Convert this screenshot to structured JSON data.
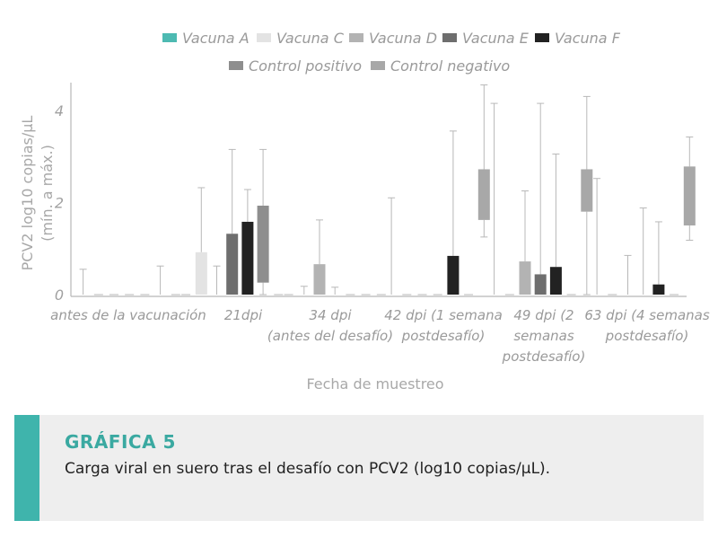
{
  "chart_data": {
    "type": "box",
    "xlabel": "Fecha de muestreo",
    "ylabel": "PCV2 log10 copias/µL",
    "ylabel2": "(mín. a máx.)",
    "ylim": [
      0,
      4.6
    ],
    "yticks": [
      0,
      2,
      4
    ],
    "grid": false,
    "legend_position": "top",
    "categories": [
      [
        "antes de la vacunación"
      ],
      [
        "21dpi"
      ],
      [
        "34 dpi",
        "(antes del desafío)"
      ],
      [
        "42 dpi (1 semana",
        "postdesafío)"
      ],
      [
        "49 dpi (2",
        "semanas",
        "postdesafío)"
      ],
      [
        "63 dpi (4 semanas",
        "postdesafío)"
      ]
    ],
    "series": [
      {
        "name": "Vacuna A",
        "color": "#4dbab2",
        "boxes": [
          {
            "min": 0,
            "q1": 0,
            "q3": 0,
            "max": 0.55
          },
          {
            "min": 0,
            "q1": 0,
            "q3": 0,
            "max": 0
          },
          {
            "min": 0,
            "q1": 0,
            "q3": 0,
            "max": 0
          },
          {
            "min": 0,
            "q1": 0,
            "q3": 0,
            "max": 2.1
          },
          {
            "min": 0,
            "q1": 0,
            "q3": 0,
            "max": 4.15
          },
          {
            "min": 0,
            "q1": 0,
            "q3": 0,
            "max": 2.52
          }
        ]
      },
      {
        "name": "Vacuna C",
        "color": "#e3e3e3",
        "boxes": [
          {
            "min": 0,
            "q1": 0,
            "q3": 0,
            "max": 0
          },
          {
            "min": 0,
            "q1": 0,
            "q3": 0.92,
            "max": 2.32
          },
          {
            "min": 0,
            "q1": 0,
            "q3": 0,
            "max": 0.18
          },
          {
            "min": 0,
            "q1": 0,
            "q3": 0,
            "max": 0
          },
          {
            "min": 0,
            "q1": 0,
            "q3": 0,
            "max": 0
          },
          {
            "min": 0,
            "q1": 0,
            "q3": 0,
            "max": 0
          }
        ]
      },
      {
        "name": "Vacuna D",
        "color": "#b3b3b3",
        "boxes": [
          {
            "min": 0,
            "q1": 0,
            "q3": 0,
            "max": 0
          },
          {
            "min": 0,
            "q1": 0,
            "q3": 0,
            "max": 0.62
          },
          {
            "min": 0,
            "q1": 0,
            "q3": 0.66,
            "max": 1.62
          },
          {
            "min": 0,
            "q1": 0,
            "q3": 0,
            "max": 0
          },
          {
            "min": 0,
            "q1": 0,
            "q3": 0.72,
            "max": 2.25
          },
          {
            "min": 0,
            "q1": 0,
            "q3": 0,
            "max": 0.85
          }
        ]
      },
      {
        "name": "Vacuna E",
        "color": "#6e6e6e",
        "boxes": [
          {
            "min": 0,
            "q1": 0,
            "q3": 0,
            "max": 0
          },
          {
            "min": 0,
            "q1": 0,
            "q3": 1.32,
            "max": 3.15
          },
          {
            "min": 0,
            "q1": 0,
            "q3": 0,
            "max": 0.16
          },
          {
            "min": 0,
            "q1": 0,
            "q3": 0,
            "max": 0
          },
          {
            "min": 0,
            "q1": 0,
            "q3": 0.44,
            "max": 4.15
          },
          {
            "min": 0,
            "q1": 0,
            "q3": 0,
            "max": 1.88
          }
        ]
      },
      {
        "name": "Vacuna F",
        "color": "#222222",
        "boxes": [
          {
            "min": 0,
            "q1": 0,
            "q3": 0,
            "max": 0
          },
          {
            "min": 0,
            "q1": 0,
            "q3": 1.58,
            "max": 2.28
          },
          {
            "min": 0,
            "q1": 0,
            "q3": 0,
            "max": 0
          },
          {
            "min": 0,
            "q1": 0,
            "q3": 0.84,
            "max": 3.55
          },
          {
            "min": 0,
            "q1": 0,
            "q3": 0.6,
            "max": 3.05
          },
          {
            "min": 0,
            "q1": 0,
            "q3": 0.22,
            "max": 1.58
          }
        ]
      },
      {
        "name": "Control positivo",
        "color": "#8e8e8e",
        "boxes": [
          {
            "min": 0,
            "q1": 0,
            "q3": 0,
            "max": 0.62
          },
          {
            "min": 0,
            "q1": 0.26,
            "q3": 1.93,
            "max": 3.15
          },
          {
            "min": 0,
            "q1": 0,
            "q3": 0,
            "max": 0
          },
          {
            "min": 0,
            "q1": 0,
            "q3": 0,
            "max": 0
          },
          {
            "min": 0,
            "q1": 0,
            "q3": 0,
            "max": 0
          },
          {
            "min": 0,
            "q1": 0,
            "q3": 0,
            "max": 0
          }
        ]
      },
      {
        "name": "Control negativo",
        "color": "#a8a8a8",
        "boxes": [
          {
            "min": 0,
            "q1": 0,
            "q3": 0,
            "max": 0
          },
          {
            "min": 0,
            "q1": 0,
            "q3": 0,
            "max": 0
          },
          {
            "min": 0,
            "q1": 0,
            "q3": 0,
            "max": 0
          },
          {
            "min": 1.25,
            "q1": 1.62,
            "q3": 2.72,
            "max": 4.55
          },
          {
            "min": 0,
            "q1": 1.8,
            "q3": 2.72,
            "max": 4.3
          },
          {
            "min": 1.18,
            "q1": 1.5,
            "q3": 2.78,
            "max": 3.42
          }
        ]
      }
    ]
  },
  "caption": {
    "label": "GRÁFICA 5",
    "text": "Carga viral en suero tras el desafío con PCV2 (log10 copias/µL)."
  }
}
